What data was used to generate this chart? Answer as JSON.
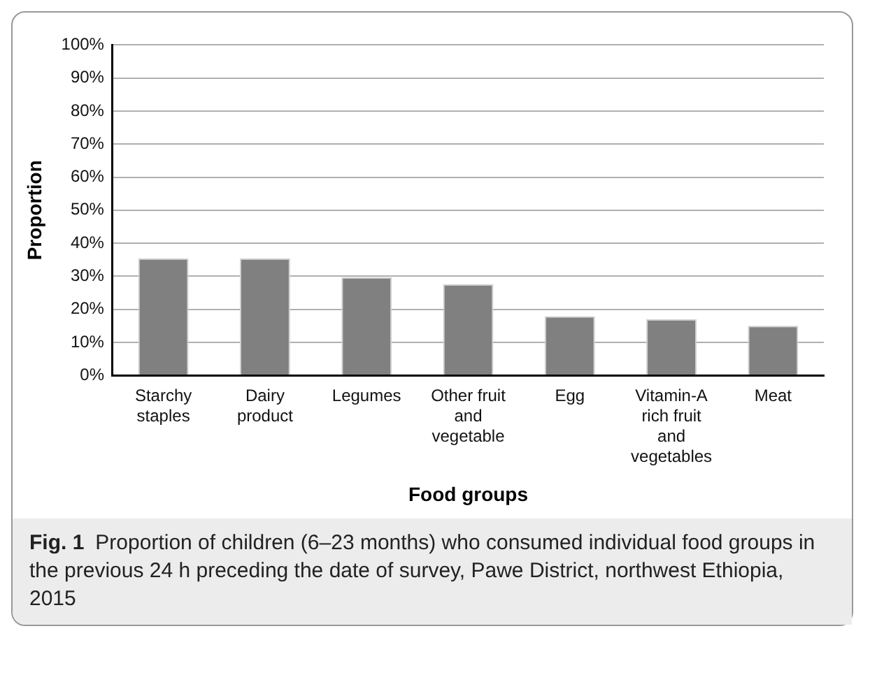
{
  "chart_data": {
    "type": "bar",
    "xlabel": "Food groups",
    "ylabel": "Proportion",
    "categories": [
      "Starchy staples",
      "Dairy product",
      "Legumes",
      "Other fruit and vegetable",
      "Egg",
      "Vitamin-A rich fruit and vegetables",
      "Meat"
    ],
    "values": [
      35.4,
      35.4,
      29.7,
      27.6,
      17.9,
      17,
      15
    ],
    "color": "#808080",
    "ylim": [
      0,
      100
    ],
    "yticks": [
      {
        "value": 0,
        "label": "0%"
      },
      {
        "value": 10,
        "label": "10%"
      },
      {
        "value": 20,
        "label": "20%"
      },
      {
        "value": 30,
        "label": "30%"
      },
      {
        "value": 40,
        "label": "40%"
      },
      {
        "value": 50,
        "label": "50%"
      },
      {
        "value": 60,
        "label": "60%"
      },
      {
        "value": 70,
        "label": "70%"
      },
      {
        "value": 80,
        "label": "80%"
      },
      {
        "value": 90,
        "label": "90%"
      },
      {
        "value": 100,
        "label": "100%"
      }
    ],
    "grid": "y",
    "annotations": [
      "Fig. 1",
      "Proportion of children (6–23 months) who consumed individual food groups in the previous 24 h preceding the date of survey, Pawe District, northwest Ethiopia, 2015"
    ]
  }
}
